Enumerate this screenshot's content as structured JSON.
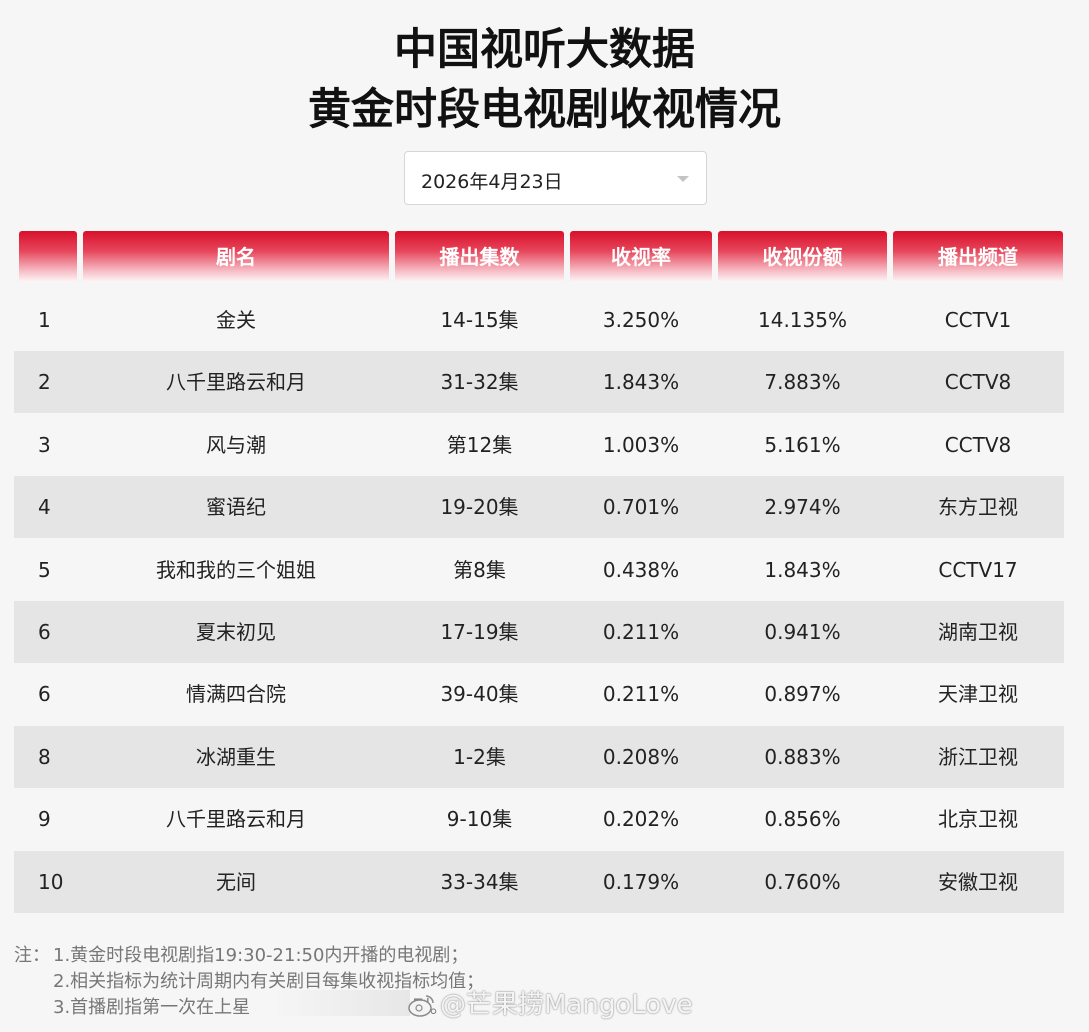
{
  "header": {
    "title_line1": "中国视听大数据",
    "title_line2": "黄金时段电视剧收视情况"
  },
  "date_select": {
    "value": "2026年4月23日"
  },
  "table": {
    "columns": [
      "",
      "剧名",
      "播出集数",
      "收视率",
      "收视份额",
      "播出频道"
    ],
    "rows": [
      [
        "1",
        "金关",
        "14-15集",
        "3.250%",
        "14.135%",
        "CCTV1"
      ],
      [
        "2",
        "八千里路云和月",
        "31-32集",
        "1.843%",
        "7.883%",
        "CCTV8"
      ],
      [
        "3",
        "风与潮",
        "第12集",
        "1.003%",
        "5.161%",
        "CCTV8"
      ],
      [
        "4",
        "蜜语纪",
        "19-20集",
        "0.701%",
        "2.974%",
        "东方卫视"
      ],
      [
        "5",
        "我和我的三个姐姐",
        "第8集",
        "0.438%",
        "1.843%",
        "CCTV17"
      ],
      [
        "6",
        "夏末初见",
        "17-19集",
        "0.211%",
        "0.941%",
        "湖南卫视"
      ],
      [
        "6",
        "情满四合院",
        "39-40集",
        "0.211%",
        "0.897%",
        "天津卫视"
      ],
      [
        "8",
        "冰湖重生",
        "1-2集",
        "0.208%",
        "0.883%",
        "浙江卫视"
      ],
      [
        "9",
        "八千里路云和月",
        "9-10集",
        "0.202%",
        "0.856%",
        "北京卫视"
      ],
      [
        "10",
        "无间",
        "33-34集",
        "0.179%",
        "0.760%",
        "安徽卫视"
      ]
    ]
  },
  "notes": {
    "prefix": "注：",
    "line1": "1.黄金时段电视剧指19:30-21:50内开播的电视剧；",
    "line2": "2.相关指标为统计周期内有关剧目每集收视指标均值；",
    "line3_start": "3.首播剧指第一次在上星",
    "line3_end": "剧。"
  },
  "watermark": {
    "text": "@芒果捞MangoLove"
  }
}
